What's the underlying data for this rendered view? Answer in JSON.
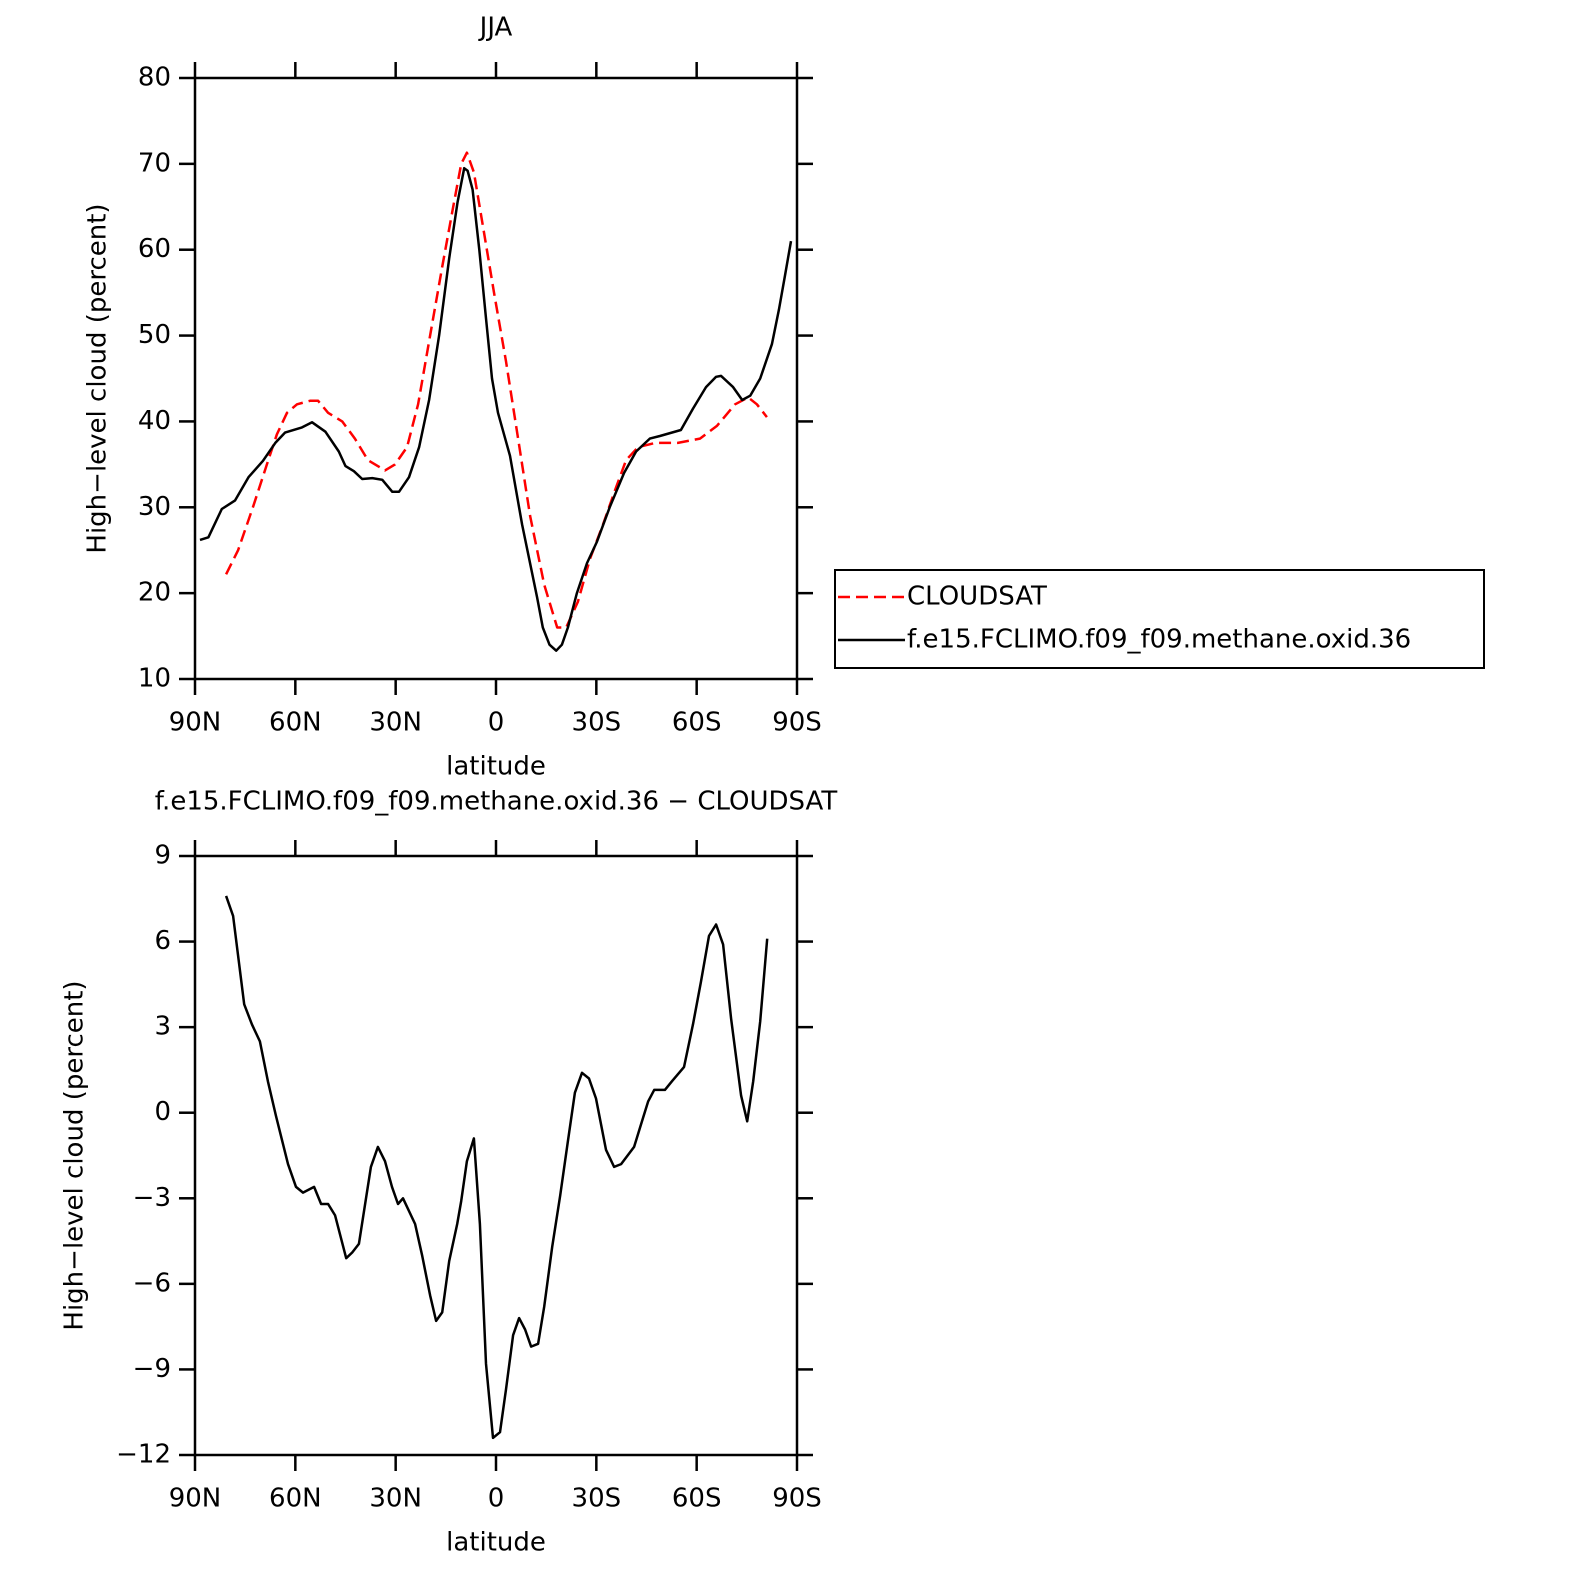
{
  "chart_data": [
    {
      "type": "line",
      "title": "JJA",
      "xlabel": "latitude",
      "ylabel": "High−level cloud (percent)",
      "xlim": [
        90,
        -90
      ],
      "ylim": [
        10,
        80
      ],
      "xticks": [
        {
          "value": 90,
          "label": "90N"
        },
        {
          "value": 60,
          "label": "60N"
        },
        {
          "value": 30,
          "label": "30N"
        },
        0,
        {
          "value": -30,
          "label": "30S"
        },
        {
          "value": -60,
          "label": "60S"
        },
        {
          "value": -90,
          "label": "90S"
        }
      ],
      "yticks": [
        10,
        20,
        30,
        40,
        50,
        60,
        70,
        80
      ],
      "legend": "outside right",
      "series": [
        {
          "name": "CLOUDSAT",
          "color": "#ff0000",
          "dash": true,
          "x": [
            80.7,
            77.1,
            72.7,
            68.5,
            65.5,
            62.5,
            59.5,
            55.6,
            53.2,
            50.2,
            46,
            42.2,
            38.3,
            33.2,
            30.2,
            26.6,
            23.3,
            19.7,
            16.1,
            12.8,
            10.4,
            8.7,
            6.6,
            3.6,
            0.6,
            -3,
            -6.6,
            -10.2,
            -14.4,
            -18.3,
            -21,
            -24.5,
            -28.1,
            -32,
            -35.6,
            -38.9,
            -42.5,
            -47.6,
            -54.4,
            -61,
            -66.1,
            -71.5,
            -75.4,
            -78,
            -81
          ],
          "values": [
            22.2,
            25,
            30,
            35,
            38.5,
            41,
            42,
            42.4,
            42.4,
            41,
            40,
            38,
            35.5,
            34.3,
            35,
            37,
            42,
            50,
            58,
            65,
            70,
            71.3,
            69,
            62,
            55,
            47,
            38,
            29,
            21,
            16,
            16,
            19,
            24,
            28,
            32,
            35.5,
            37,
            37.5,
            37.5,
            38,
            39.5,
            42,
            42.8,
            42,
            40.5
          ]
        },
        {
          "name": "f.e15.FCLIMO.f09_f09.methane.oxid.36",
          "color": "#000000",
          "dash": false,
          "x": [
            88.5,
            86,
            82,
            78,
            74,
            69.7,
            66,
            63.1,
            58,
            55,
            51,
            47,
            45,
            42.5,
            40,
            37,
            34,
            31,
            29,
            26,
            23,
            20,
            17,
            14,
            11.5,
            9.5,
            8.5,
            7,
            5,
            3,
            1.2,
            -0.6,
            -4.2,
            -7.8,
            -12.3,
            -14,
            -16,
            -18,
            -19.7,
            -21.5,
            -24.2,
            -27.2,
            -30.2,
            -34,
            -38.3,
            -41.9,
            -46,
            -49,
            -55.3,
            -58.9,
            -62.8,
            -65.8,
            -67.3,
            -70.9,
            -73.6,
            -76,
            -79,
            -82.5,
            -84.6,
            -86.4,
            -88.2
          ],
          "values": [
            26.2,
            26.5,
            29.8,
            30.8,
            33.5,
            35.4,
            37.5,
            38.7,
            39.3,
            39.9,
            38.8,
            36.5,
            34.8,
            34.2,
            33.3,
            33.4,
            33.2,
            31.8,
            31.8,
            33.5,
            37,
            42.5,
            50,
            59,
            65.5,
            69.5,
            69.2,
            67,
            60,
            52,
            45,
            41,
            36,
            28,
            19.5,
            16,
            14,
            13.3,
            14,
            16,
            20,
            23.5,
            26,
            30,
            34,
            36.5,
            38,
            38.3,
            39,
            41.5,
            44,
            45.2,
            45.3,
            44,
            42.5,
            43,
            45,
            49,
            53,
            57,
            61
          ]
        }
      ]
    },
    {
      "type": "line",
      "title": "f.e15.FCLIMO.f09_f09.methane.oxid.36 − CLOUDSAT",
      "xlabel": "latitude",
      "ylabel": "High−level cloud (percent)",
      "xlim": [
        90,
        -90
      ],
      "ylim": [
        -12,
        9
      ],
      "xticks": [
        {
          "value": 90,
          "label": "90N"
        },
        {
          "value": 60,
          "label": "60N"
        },
        {
          "value": 30,
          "label": "30N"
        },
        0,
        {
          "value": -30,
          "label": "30S"
        },
        {
          "value": -60,
          "label": "60S"
        },
        {
          "value": -90,
          "label": "90S"
        }
      ],
      "yticks": [
        {
          "value": -12,
          "label": "−12"
        },
        {
          "value": -9,
          "label": "−9"
        },
        {
          "value": -6,
          "label": "−6"
        },
        {
          "value": -3,
          "label": "−3"
        },
        0,
        3,
        6,
        9
      ],
      "series": [
        {
          "color": "#000000",
          "dash": false,
          "x": [
            80.7,
            78.6,
            75.3,
            73,
            70.6,
            68.2,
            65.8,
            62.2,
            59.8,
            57.7,
            54.4,
            52.3,
            50.2,
            48.1,
            44.8,
            43,
            41,
            37.4,
            35.3,
            33.2,
            31.1,
            29.3,
            27.8,
            24.2,
            22.1,
            19.7,
            17.9,
            16.1,
            14,
            11.6,
            10.4,
            8.7,
            6.6,
            4.8,
            3,
            0.9,
            -1.2,
            -3,
            -5.1,
            -6.9,
            -8.7,
            -10.5,
            -12.6,
            -14.4,
            -16.8,
            -19.2,
            -21.5,
            -23.6,
            -25.7,
            -27.8,
            -29.9,
            -32.9,
            -35.3,
            -37.4,
            -41.3,
            -43.4,
            -45.5,
            -47.3,
            -50.5,
            -52.6,
            -56.2,
            -58.9,
            -61.3,
            -63.7,
            -65.8,
            -67.9,
            -70.3,
            -73.3,
            -75.1,
            -76.9,
            -79,
            -81.1
          ],
          "values": [
            7.6,
            6.9,
            3.8,
            3.1,
            2.5,
            1.1,
            -0.1,
            -1.8,
            -2.6,
            -2.8,
            -2.6,
            -3.2,
            -3.2,
            -3.6,
            -5.1,
            -4.9,
            -4.6,
            -1.9,
            -1.2,
            -1.7,
            -2.6,
            -3.2,
            -3,
            -3.9,
            -5,
            -6.4,
            -7.3,
            -7,
            -5.2,
            -3.9,
            -3.1,
            -1.7,
            -0.9,
            -3.9,
            -8.8,
            -11.4,
            -11.2,
            -9.7,
            -7.8,
            -7.2,
            -7.6,
            -8.2,
            -8.1,
            -6.8,
            -4.7,
            -2.9,
            -1,
            0.7,
            1.4,
            1.2,
            0.5,
            -1.3,
            -1.9,
            -1.8,
            -1.2,
            -0.4,
            0.4,
            0.8,
            0.8,
            1.1,
            1.6,
            3.1,
            4.6,
            6.2,
            6.6,
            5.9,
            3.3,
            0.6,
            -0.3,
            1.1,
            3.2,
            6.1
          ]
        }
      ]
    }
  ]
}
